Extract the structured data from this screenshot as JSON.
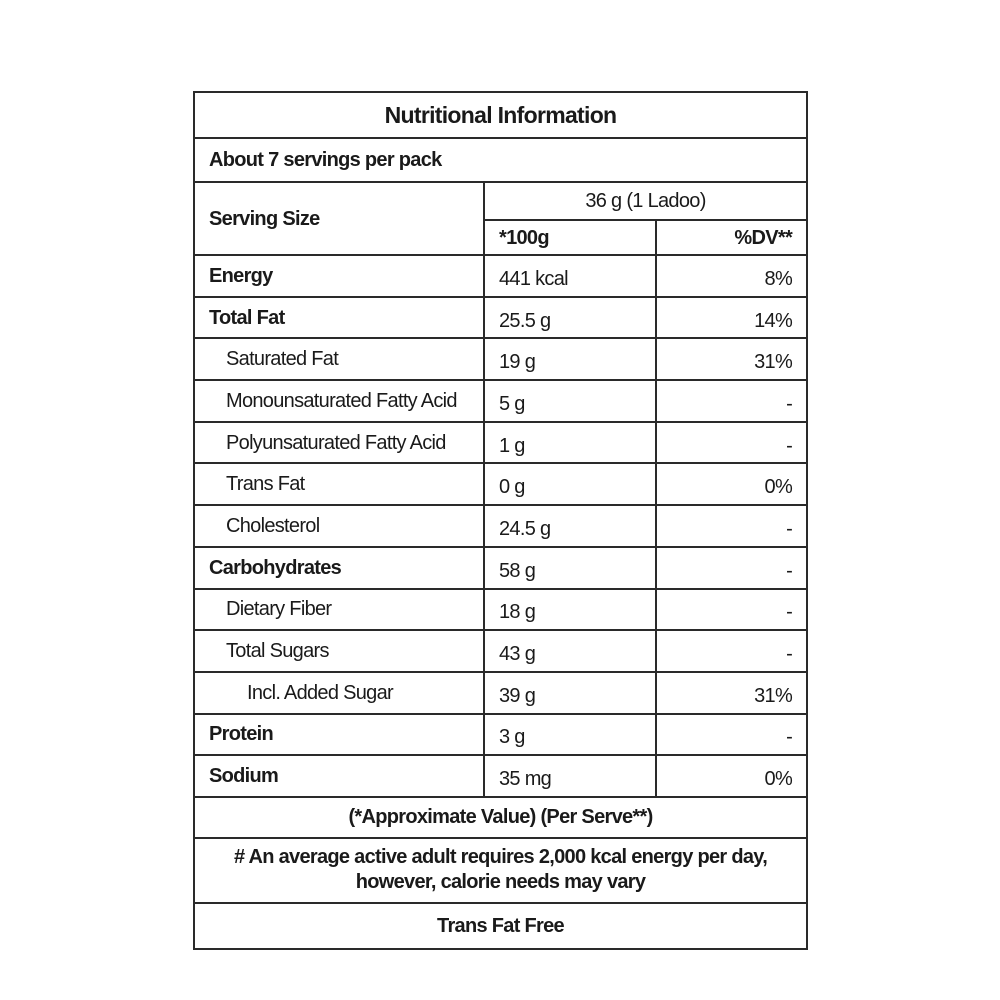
{
  "title": "Nutritional Information",
  "servings_per_pack": "About 7 servings per pack",
  "serving_size": {
    "label": "Serving Size",
    "value": "36 g (1 Ladoo)",
    "col_per100": "*100g",
    "col_dv": "%DV**"
  },
  "rows": [
    {
      "name": "Energy",
      "value": "441 kcal",
      "dv": "8%",
      "level": 0
    },
    {
      "name": "Total Fat",
      "value": "25.5 g",
      "dv": "14%",
      "level": 0
    },
    {
      "name": "Saturated Fat",
      "value": "19 g",
      "dv": "31%",
      "level": 1
    },
    {
      "name": "Monounsaturated Fatty Acid",
      "value": "5 g",
      "dv": "-",
      "level": 1
    },
    {
      "name": "Polyunsaturated Fatty Acid",
      "value": "1 g",
      "dv": "-",
      "level": 1
    },
    {
      "name": "Trans Fat",
      "value": "0 g",
      "dv": "0%",
      "level": 1
    },
    {
      "name": "Cholesterol",
      "value": "24.5 g",
      "dv": "-",
      "level": 1
    },
    {
      "name": "Carbohydrates",
      "value": "58 g",
      "dv": "-",
      "level": 0
    },
    {
      "name": "Dietary Fiber",
      "value": "18 g",
      "dv": "-",
      "level": 1
    },
    {
      "name": "Total Sugars",
      "value": "43 g",
      "dv": "-",
      "level": 1
    },
    {
      "name": "Incl. Added Sugar",
      "value": "39 g",
      "dv": "31%",
      "level": 2
    },
    {
      "name": "Protein",
      "value": "3 g",
      "dv": "-",
      "level": 0
    },
    {
      "name": "Sodium",
      "value": "35 mg",
      "dv": "0%",
      "level": 0
    }
  ],
  "footnote": "(*Approximate Value) (Per Serve**)",
  "note_line1": "# An average active adult requires 2,000 kcal energy per day,",
  "note_line2": "however, calorie needs may vary",
  "claim": "Trans Fat Free"
}
